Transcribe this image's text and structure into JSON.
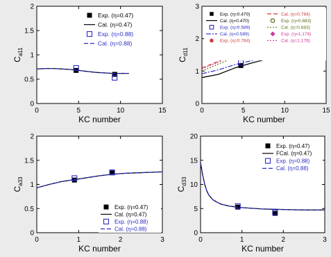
{
  "chart_data": [
    {
      "type": "line",
      "xlabel": "KC number",
      "ylabel": "C",
      "ylabel_sub": "a11",
      "xlim": [
        0,
        15
      ],
      "ylim": [
        0,
        2
      ],
      "xticks": [
        "0",
        "5",
        "10",
        "15"
      ],
      "yticks": [
        "0",
        "0.5",
        "1",
        "1.5",
        "2"
      ],
      "legend_position": "top-right",
      "series": [
        {
          "name": "Exp. (η=0.47)",
          "kind": "marker",
          "marker": "filled-square",
          "color": "#000000",
          "x": [
            4.7,
            9.3
          ],
          "y": [
            0.68,
            0.6
          ]
        },
        {
          "name": "Cal. (η=0.47)",
          "kind": "line",
          "dash": "solid",
          "color": "#000000",
          "x": [
            0,
            1,
            2,
            3,
            4,
            5,
            6,
            7,
            8,
            9,
            10,
            11
          ],
          "y": [
            0.71,
            0.72,
            0.72,
            0.71,
            0.7,
            0.68,
            0.66,
            0.64,
            0.63,
            0.62,
            0.62,
            0.62
          ]
        },
        {
          "name": "Exp. (η=0.88)",
          "kind": "marker",
          "marker": "open-square",
          "color": "#2b2bc4",
          "x": [
            4.7,
            9.3
          ],
          "y": [
            0.73,
            0.53
          ]
        },
        {
          "name": "Cal. (η=0.88)",
          "kind": "line",
          "dash": "dashed",
          "color": "#2b2bc4",
          "x": [
            0,
            1,
            2,
            3,
            4,
            5,
            6,
            7,
            8,
            9,
            10,
            11
          ],
          "y": [
            0.71,
            0.72,
            0.72,
            0.71,
            0.7,
            0.68,
            0.66,
            0.64,
            0.63,
            0.62,
            0.62,
            0.62
          ]
        }
      ]
    },
    {
      "type": "line",
      "xlabel": "KC number",
      "ylabel": "C",
      "ylabel_sub": "d11",
      "xlim": [
        0,
        15
      ],
      "ylim": [
        0,
        3
      ],
      "xticks": [
        "0",
        "5",
        "10",
        "15"
      ],
      "yticks": [
        "0",
        "1",
        "2",
        "3"
      ],
      "legend_position": "top",
      "series": [
        {
          "name": "Exp. (η=0.470)",
          "kind": "marker",
          "marker": "filled-square",
          "color": "#000000",
          "x": [
            4.7,
            9.3
          ],
          "y": [
            1.17,
            1.45
          ]
        },
        {
          "name": "Cal. (η=0.470)",
          "kind": "line",
          "dash": "solid",
          "color": "#000000",
          "x": [
            0,
            2,
            4,
            6,
            8,
            9.5,
            11
          ],
          "y": [
            0.8,
            0.9,
            1.1,
            1.25,
            1.38,
            1.46,
            1.58
          ]
        },
        {
          "name": "Exp. (η=0.589)",
          "kind": "marker",
          "marker": "open-square",
          "color": "#2b2bc4",
          "x": [
            4.7,
            9.3
          ],
          "y": [
            1.26,
            1.48
          ]
        },
        {
          "name": "Cal. (η=0.589)",
          "kind": "line",
          "dash": "dashdot",
          "color": "#2b2bc4",
          "x": [
            0,
            2,
            4,
            6,
            8,
            9.5,
            11
          ],
          "y": [
            0.92,
            1.04,
            1.2,
            1.32,
            1.42,
            1.48,
            1.58
          ]
        },
        {
          "name": "Exp. (η=0.784)",
          "kind": "marker",
          "marker": "filled-circle",
          "color": "#d03a3a",
          "x": [
            4.7,
            9.3
          ],
          "y": [
            1.62,
            1.52
          ]
        },
        {
          "name": "Cal. (η=0.784)",
          "kind": "line",
          "dash": "dashed",
          "color": "#d03a3a",
          "x": [
            0,
            2,
            4,
            5,
            6,
            8,
            9.5,
            11
          ],
          "y": [
            1.1,
            1.3,
            1.52,
            1.6,
            1.58,
            1.5,
            1.48,
            1.58
          ]
        },
        {
          "name": "Exp. (η=0.883)",
          "kind": "marker",
          "marker": "open-circle",
          "color": "#5a6a1a",
          "x": [
            4.7,
            9.3
          ],
          "y": [
            1.5,
            1.52
          ]
        },
        {
          "name": "Cal. (η=0.883)",
          "kind": "line",
          "dash": "dotted",
          "color": "#5a7a1a",
          "x": [
            0,
            2,
            4,
            5,
            6,
            8,
            9.5,
            11
          ],
          "y": [
            1.0,
            1.22,
            1.42,
            1.5,
            1.5,
            1.46,
            1.47,
            1.58
          ]
        },
        {
          "name": "Exp. (η=1.178)",
          "kind": "marker",
          "marker": "filled-diamond",
          "color": "#cc3b9c",
          "x": [
            4.7,
            9.3
          ],
          "y": [
            1.55,
            1.5
          ]
        },
        {
          "name": "Cal. (η=1.178)",
          "kind": "line",
          "dash": "dotted",
          "color": "#cc3b9c",
          "x": [
            0,
            2,
            4,
            5,
            6,
            8,
            9.5,
            11
          ],
          "y": [
            1.06,
            1.28,
            1.5,
            1.56,
            1.55,
            1.48,
            1.48,
            1.58
          ]
        }
      ]
    },
    {
      "type": "line",
      "xlabel": "KC number",
      "ylabel": "C",
      "ylabel_sub": "a33",
      "xlim": [
        0,
        3
      ],
      "ylim": [
        0,
        2
      ],
      "xticks": [
        "0",
        "1",
        "2",
        "3"
      ],
      "yticks": [
        "0",
        "0.5",
        "1",
        "1.5",
        "2"
      ],
      "legend_position": "bottom-right",
      "series": [
        {
          "name": "Exp. (η=0.47)",
          "kind": "marker",
          "marker": "filled-square",
          "color": "#000000",
          "x": [
            0.9,
            1.8
          ],
          "y": [
            1.09,
            1.24
          ]
        },
        {
          "name": "Cal. (η=0.47)",
          "kind": "line",
          "dash": "solid",
          "color": "#000000",
          "x": [
            0,
            0.3,
            0.6,
            0.9,
            1.2,
            1.5,
            1.8,
            2.1,
            2.4,
            2.7,
            3.0
          ],
          "y": [
            0.93,
            1.0,
            1.06,
            1.1,
            1.14,
            1.18,
            1.21,
            1.23,
            1.24,
            1.25,
            1.26
          ]
        },
        {
          "name": "Exp. (η=0.88)",
          "kind": "marker",
          "marker": "open-square",
          "color": "#2b2bc4",
          "x": [
            0.9,
            1.8
          ],
          "y": [
            1.13,
            1.25
          ]
        },
        {
          "name": "Cal. (η=0.88)",
          "kind": "line",
          "dash": "dashed",
          "color": "#2b2bc4",
          "x": [
            0,
            0.3,
            0.6,
            0.9,
            1.2,
            1.5,
            1.8,
            2.1,
            2.4,
            2.7,
            3.0
          ],
          "y": [
            0.93,
            1.0,
            1.06,
            1.1,
            1.14,
            1.18,
            1.21,
            1.23,
            1.24,
            1.25,
            1.26
          ]
        }
      ]
    },
    {
      "type": "line",
      "xlabel": "KC number",
      "ylabel": "C",
      "ylabel_sub": "d33",
      "xlim": [
        0,
        3
      ],
      "ylim": [
        0,
        20
      ],
      "xticks": [
        "0",
        "1",
        "2",
        "3"
      ],
      "yticks": [
        "0",
        "5",
        "10",
        "15",
        "20"
      ],
      "legend_position": "top-right",
      "series": [
        {
          "name": "Exp. (η=0.47)",
          "kind": "marker",
          "marker": "filled-square",
          "color": "#000000",
          "x": [
            0.9,
            1.8
          ],
          "y": [
            5.3,
            4.0
          ]
        },
        {
          "name": "FCal. (η=0.47)",
          "kind": "line",
          "dash": "solid",
          "color": "#000000",
          "x": [
            0.0,
            0.05,
            0.1,
            0.15,
            0.2,
            0.3,
            0.4,
            0.5,
            0.7,
            1.0,
            1.5,
            2.0,
            2.5,
            3.0
          ],
          "y": [
            14.5,
            12.0,
            10.0,
            8.7,
            7.8,
            6.8,
            6.3,
            5.9,
            5.5,
            5.2,
            4.9,
            4.8,
            4.7,
            4.7
          ]
        },
        {
          "name": "Exp. (η=0.88)",
          "kind": "marker",
          "marker": "open-square",
          "color": "#2b2bc4",
          "x": [
            0.9,
            1.8
          ],
          "y": [
            5.5,
            4.2
          ]
        },
        {
          "name": "Cal. (η=0.88)",
          "kind": "line",
          "dash": "dashed",
          "color": "#2b2bc4",
          "x": [
            0.0,
            0.05,
            0.1,
            0.15,
            0.2,
            0.3,
            0.4,
            0.5,
            0.7,
            1.0,
            1.5,
            2.0,
            2.5,
            3.0
          ],
          "y": [
            14.5,
            12.0,
            10.0,
            8.7,
            7.8,
            6.8,
            6.3,
            5.9,
            5.5,
            5.2,
            4.9,
            4.8,
            4.7,
            4.7
          ]
        }
      ]
    }
  ]
}
